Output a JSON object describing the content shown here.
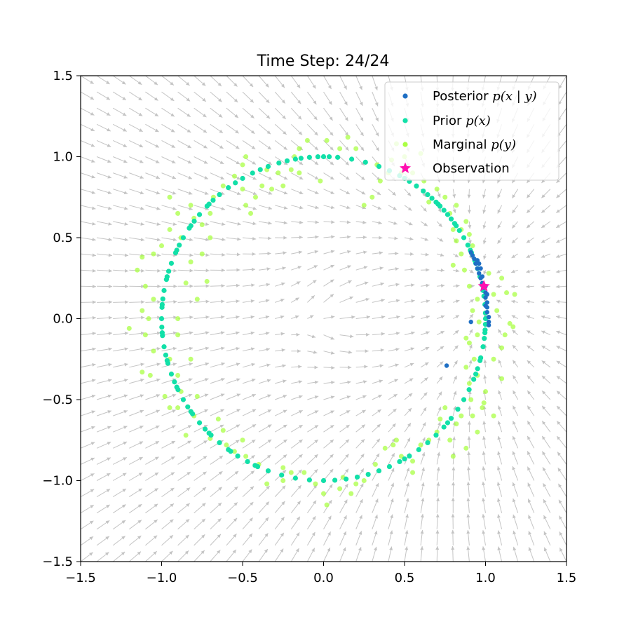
{
  "chart_data": {
    "type": "scatter",
    "title": "Time Step: 24/24",
    "xlabel": "",
    "ylabel": "",
    "xlim": [
      -1.5,
      1.5
    ],
    "ylim": [
      -1.5,
      1.5
    ],
    "xticks": [
      -1.5,
      -1.0,
      -0.5,
      0.0,
      0.5,
      1.0,
      1.5
    ],
    "yticks": [
      -1.5,
      -1.0,
      -0.5,
      0.0,
      0.5,
      1.0,
      1.5
    ],
    "xtick_labels": [
      "−1.5",
      "−1.0",
      "−0.5",
      "0.0",
      "0.5",
      "1.0",
      "1.5"
    ],
    "ytick_labels": [
      "−1.5",
      "−1.0",
      "−0.5",
      "0.0",
      "0.5",
      "1.0",
      "1.5"
    ],
    "grid": false,
    "legend_position": "top-right",
    "legend": [
      {
        "key": "posterior",
        "prefix": "Posterior ",
        "math": "p(x | y)"
      },
      {
        "key": "prior",
        "prefix": "Prior ",
        "math": "p(x)"
      },
      {
        "key": "marginal",
        "prefix": "Marginal ",
        "math": "p(y)"
      },
      {
        "key": "observation",
        "prefix": "Observation",
        "math": ""
      }
    ],
    "colors": {
      "posterior": "#1f6fc4",
      "prior": "#12e0a8",
      "marginal": "#aaff44",
      "observation": "#ff10b0",
      "vector_field": "#c4c4c4"
    },
    "observation": {
      "x": 0.99,
      "y": 0.2
    },
    "series": {
      "posterior": [
        [
          0.91,
          0.41
        ],
        [
          0.92,
          0.39
        ],
        [
          0.93,
          0.37
        ],
        [
          0.94,
          0.34
        ],
        [
          0.95,
          0.31
        ],
        [
          0.96,
          0.28
        ],
        [
          0.97,
          0.25
        ],
        [
          0.98,
          0.22
        ],
        [
          0.99,
          0.19
        ],
        [
          1.0,
          0.16
        ],
        [
          1.0,
          0.13
        ],
        [
          1.01,
          0.1
        ],
        [
          1.01,
          0.07
        ],
        [
          1.01,
          0.04
        ],
        [
          1.02,
          0.01
        ],
        [
          1.02,
          -0.02
        ],
        [
          1.02,
          -0.04
        ],
        [
          0.97,
          0.31
        ],
        [
          0.96,
          0.34
        ],
        [
          0.95,
          0.36
        ],
        [
          0.98,
          0.26
        ],
        [
          1.0,
          0.2
        ],
        [
          1.01,
          0.15
        ],
        [
          1.0,
          0.08
        ],
        [
          0.91,
          -0.02
        ],
        [
          0.76,
          -0.29
        ]
      ],
      "prior_angles_deg": [
        5,
        8,
        12,
        15,
        18,
        21,
        24,
        27,
        30,
        33,
        36,
        38,
        40,
        42,
        44,
        46,
        48,
        50,
        52,
        55,
        58,
        62,
        66,
        70,
        75,
        80,
        85,
        88,
        90,
        92,
        95,
        98,
        100,
        103,
        106,
        110,
        113,
        116,
        120,
        123,
        126,
        130,
        133,
        136,
        140,
        143,
        146,
        150,
        153,
        156,
        160,
        163,
        166,
        170,
        173,
        176,
        180,
        183,
        186,
        190,
        193,
        196,
        200,
        203,
        206,
        210,
        213,
        216,
        220,
        223,
        226,
        230,
        234,
        238,
        242,
        246,
        250,
        255,
        260,
        265,
        270,
        274,
        278,
        282,
        286,
        290,
        294,
        298,
        302,
        306,
        310,
        314,
        318,
        322,
        326,
        330,
        334,
        338,
        342,
        346,
        350,
        353,
        356,
        358,
        0,
        2,
        10,
        20,
        25,
        35,
        45,
        60,
        135,
        145,
        155,
        165,
        175,
        185,
        195,
        205,
        215,
        225,
        235,
        245,
        300,
        320,
        340,
        345,
        355
      ],
      "marginal": [
        [
          1.02,
          0.28
        ],
        [
          1.05,
          0.15
        ],
        [
          1.1,
          0.25
        ],
        [
          1.13,
          0.16
        ],
        [
          1.18,
          0.15
        ],
        [
          0.9,
          0.2
        ],
        [
          1.07,
          0.05
        ],
        [
          1.15,
          -0.03
        ],
        [
          1.12,
          -0.1
        ],
        [
          1.1,
          -0.18
        ],
        [
          1.05,
          -0.25
        ],
        [
          1.17,
          -0.05
        ],
        [
          0.95,
          -0.1
        ],
        [
          0.88,
          -0.12
        ],
        [
          1.1,
          -0.37
        ],
        [
          1.0,
          -0.45
        ],
        [
          0.99,
          -0.52
        ],
        [
          1.05,
          -0.6
        ],
        [
          0.98,
          -0.55
        ],
        [
          0.85,
          -0.6
        ],
        [
          0.75,
          -0.55
        ],
        [
          0.78,
          -0.75
        ],
        [
          0.82,
          -0.65
        ],
        [
          0.7,
          -0.7
        ],
        [
          0.65,
          -0.75
        ],
        [
          0.6,
          -0.78
        ],
        [
          0.55,
          -0.88
        ],
        [
          0.48,
          -0.85
        ],
        [
          0.43,
          -0.78
        ],
        [
          0.38,
          -0.8
        ],
        [
          0.32,
          -0.9
        ],
        [
          0.25,
          -1.0
        ],
        [
          0.17,
          -1.08
        ],
        [
          0.1,
          -1.05
        ],
        [
          0.02,
          -1.15
        ],
        [
          -0.05,
          -1.02
        ],
        [
          -0.12,
          -0.95
        ],
        [
          -0.2,
          -0.95
        ],
        [
          -0.25,
          -1.0
        ],
        [
          -0.35,
          -1.02
        ],
        [
          -0.4,
          -0.9
        ],
        [
          -0.48,
          -0.85
        ],
        [
          -0.55,
          -0.82
        ],
        [
          -0.5,
          -0.75
        ],
        [
          -0.6,
          -0.78
        ],
        [
          -0.62,
          -0.69
        ],
        [
          -0.7,
          -0.74
        ],
        [
          -0.8,
          -0.6
        ],
        [
          -0.85,
          -0.72
        ],
        [
          -0.9,
          -0.55
        ],
        [
          -0.95,
          -0.55
        ],
        [
          -0.98,
          -0.48
        ],
        [
          -1.07,
          -0.35
        ],
        [
          -1.12,
          -0.33
        ],
        [
          -0.9,
          -0.35
        ],
        [
          -0.88,
          -0.45
        ],
        [
          -0.82,
          -0.25
        ],
        [
          -0.9,
          -0.1
        ],
        [
          -1.05,
          -0.2
        ],
        [
          -1.1,
          -0.1
        ],
        [
          -1.2,
          -0.06
        ],
        [
          -1.08,
          0.0
        ],
        [
          -1.12,
          0.05
        ],
        [
          -1.05,
          0.12
        ],
        [
          -1.1,
          0.2
        ],
        [
          -1.15,
          0.3
        ],
        [
          -1.12,
          0.38
        ],
        [
          -1.05,
          0.4
        ],
        [
          -1.0,
          0.45
        ],
        [
          -0.95,
          0.55
        ],
        [
          -0.88,
          0.5
        ],
        [
          -0.9,
          0.65
        ],
        [
          -0.95,
          0.75
        ],
        [
          -0.82,
          0.7
        ],
        [
          -0.8,
          0.62
        ],
        [
          -0.75,
          0.58
        ],
        [
          -0.7,
          0.5
        ],
        [
          -0.75,
          0.4
        ],
        [
          -0.82,
          0.35
        ],
        [
          -0.72,
          0.23
        ],
        [
          -0.85,
          0.22
        ],
        [
          -0.78,
          0.12
        ],
        [
          -0.7,
          0.65
        ],
        [
          -0.68,
          0.75
        ],
        [
          -0.62,
          0.82
        ],
        [
          -0.55,
          0.88
        ],
        [
          -0.5,
          0.8
        ],
        [
          -0.48,
          0.7
        ],
        [
          -0.45,
          0.65
        ],
        [
          -0.42,
          0.75
        ],
        [
          -0.5,
          0.95
        ],
        [
          -0.48,
          1.0
        ],
        [
          -0.35,
          0.92
        ],
        [
          -0.32,
          0.8
        ],
        [
          -0.25,
          0.82
        ],
        [
          -0.2,
          0.92
        ],
        [
          -0.18,
          1.0
        ],
        [
          -0.15,
          1.05
        ],
        [
          -0.1,
          1.1
        ],
        [
          -0.02,
          0.85
        ],
        [
          0.02,
          1.1
        ],
        [
          0.1,
          1.05
        ],
        [
          0.15,
          1.12
        ],
        [
          0.2,
          1.05
        ],
        [
          0.25,
          0.7
        ],
        [
          0.3,
          0.75
        ],
        [
          0.35,
          0.85
        ],
        [
          0.33,
          0.95
        ],
        [
          0.4,
          0.9
        ],
        [
          0.42,
          0.98
        ],
        [
          0.48,
          0.9
        ],
        [
          0.45,
          1.08
        ],
        [
          0.5,
          1.0
        ],
        [
          0.55,
          0.9
        ],
        [
          0.6,
          1.02
        ],
        [
          0.62,
          0.85
        ],
        [
          0.65,
          0.72
        ],
        [
          0.7,
          0.8
        ],
        [
          0.75,
          0.75
        ],
        [
          0.78,
          0.65
        ],
        [
          0.82,
          0.7
        ],
        [
          0.8,
          0.55
        ],
        [
          0.85,
          0.55
        ],
        [
          0.88,
          0.6
        ],
        [
          0.9,
          0.52
        ],
        [
          0.92,
          0.45
        ],
        [
          0.85,
          0.4
        ],
        [
          0.8,
          0.33
        ],
        [
          0.87,
          0.3
        ],
        [
          0.82,
          0.48
        ],
        [
          0.95,
          0.12
        ],
        [
          0.92,
          0.05
        ],
        [
          0.96,
          -0.02
        ],
        [
          0.9,
          -0.15
        ],
        [
          0.93,
          -0.25
        ],
        [
          0.95,
          -0.35
        ],
        [
          0.88,
          -0.3
        ],
        [
          0.9,
          -0.4
        ],
        [
          0.91,
          -0.5
        ],
        [
          0.92,
          -0.6
        ],
        [
          0.95,
          -0.7
        ],
        [
          0.88,
          -0.8
        ],
        [
          0.8,
          -0.85
        ],
        [
          -0.28,
          0.9
        ],
        [
          -0.15,
          0.9
        ],
        [
          -0.38,
          0.82
        ],
        [
          -0.9,
          0.0
        ],
        [
          -0.95,
          -0.25
        ],
        [
          -0.78,
          -0.48
        ],
        [
          -0.65,
          -0.62
        ],
        [
          -0.25,
          -0.92
        ],
        [
          0.0,
          -1.08
        ],
        [
          0.12,
          -0.98
        ],
        [
          0.2,
          -1.02
        ],
        [
          0.55,
          -0.95
        ],
        [
          0.45,
          -0.75
        ],
        [
          0.72,
          -0.62
        ]
      ]
    }
  }
}
